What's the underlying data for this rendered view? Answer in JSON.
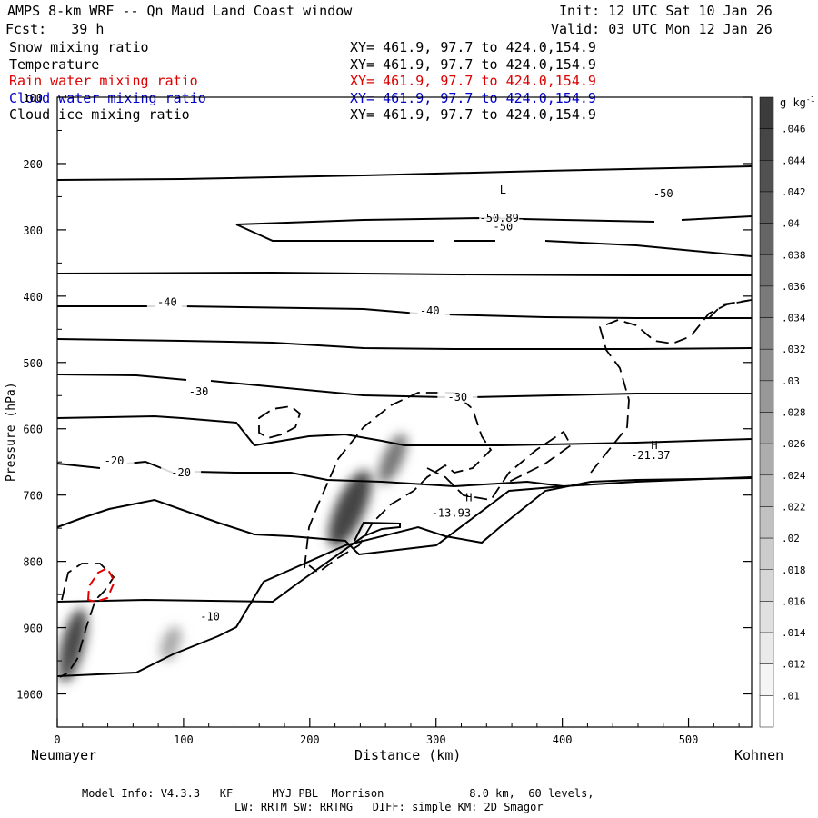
{
  "header": {
    "title": "AMPS 8-km WRF -- Qn Maud Land Coast window",
    "fcst": "Fcst:   39 h",
    "init": "Init: 12 UTC Sat 10 Jan 26",
    "valid": "Valid: 03 UTC Mon 12 Jan 26"
  },
  "fields": [
    {
      "name": "Snow mixing ratio",
      "xy": "XY= 461.9, 97.7 to 424.0,154.9",
      "color": "#000000"
    },
    {
      "name": "Temperature",
      "xy": "XY= 461.9, 97.7 to 424.0,154.9",
      "color": "#000000"
    },
    {
      "name": "Rain water mixing ratio",
      "xy": "XY= 461.9, 97.7 to 424.0,154.9",
      "color": "#dd0000"
    },
    {
      "name": "Cloud water mixing ratio",
      "xy": "XY= 461.9, 97.7 to 424.0,154.9",
      "color": "#0000cc"
    },
    {
      "name": "Cloud ice mixing ratio",
      "xy": "XY= 461.9, 97.7 to 424.0,154.9",
      "color": "#000000"
    }
  ],
  "footer": {
    "line1": "Model Info: V4.3.3   KF      MYJ PBL  Morrison             8.0 km,  60 levels,",
    "line2": "LW: RRTM SW: RRTMG   DIFF: simple KM: 2D Smagor"
  },
  "chart_data": {
    "type": "cross-section contour",
    "xlabel": "Distance (km)",
    "ylabel": "Pressure (hPa)",
    "xlim": [
      0,
      550
    ],
    "ylim": [
      1050,
      100
    ],
    "x_ticks": [
      0,
      100,
      200,
      300,
      400,
      500
    ],
    "y_ticks": [
      100,
      200,
      300,
      400,
      500,
      600,
      700,
      800,
      900,
      1000
    ],
    "left_endpoint": "Neumayer",
    "right_endpoint": "Kohnen",
    "colorbar": {
      "unit_base": "g kg",
      "unit_exp": "-1",
      "levels": [
        ".046",
        ".044",
        ".042",
        ".04",
        ".038",
        ".036",
        ".034",
        ".032",
        ".03",
        ".028",
        ".026",
        ".024",
        ".022",
        ".02",
        ".018",
        ".016",
        ".014",
        ".012",
        ".01"
      ]
    },
    "isotherm_labels": [
      {
        "text": "-50",
        "x": 353,
        "p": 298
      },
      {
        "text": "-50.89",
        "x": 350,
        "p": 285
      },
      {
        "text": "-50",
        "x": 480,
        "p": 248
      },
      {
        "text": "-40",
        "x": 87,
        "p": 412
      },
      {
        "text": "-40",
        "x": 295,
        "p": 425
      },
      {
        "text": "-30",
        "x": 112,
        "p": 547
      },
      {
        "text": "-30",
        "x": 317,
        "p": 555
      },
      {
        "text": "-20",
        "x": 45,
        "p": 651
      },
      {
        "text": "-20",
        "x": 98,
        "p": 669
      },
      {
        "text": "-10",
        "x": 121,
        "p": 886
      },
      {
        "text": "-13.93",
        "x": 312,
        "p": 730
      },
      {
        "text": "-21.37",
        "x": 470,
        "p": 643
      }
    ],
    "extrema": [
      {
        "text": "L",
        "x": 353,
        "p": 240
      },
      {
        "text": "H",
        "x": 326,
        "p": 704
      },
      {
        "text": "H",
        "x": 473,
        "p": 625
      }
    ]
  }
}
